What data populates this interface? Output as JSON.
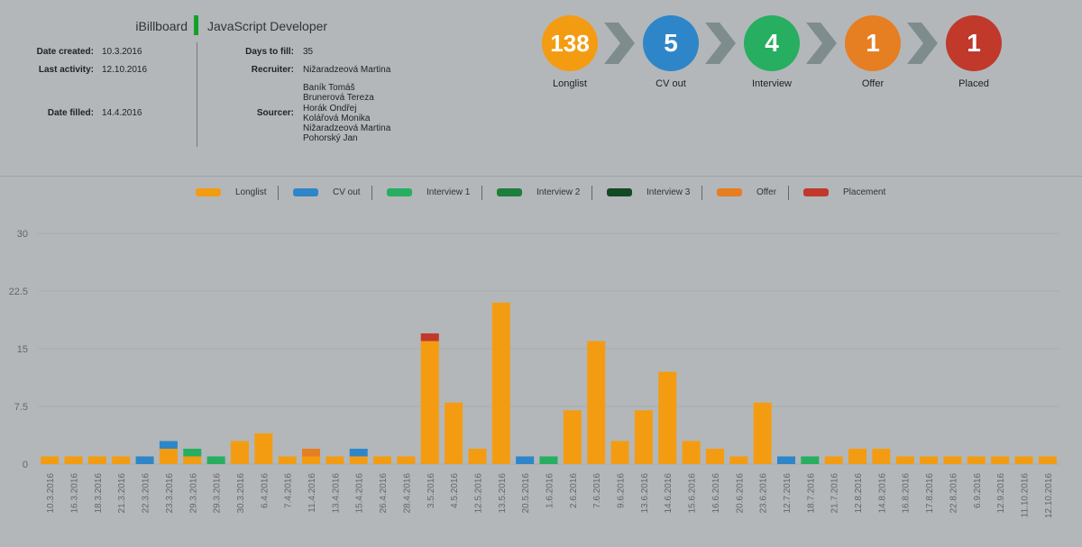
{
  "header": {
    "company": "iBillboard",
    "position": "JavaScript Developer"
  },
  "info": {
    "date_created_label": "Date created:",
    "date_created": "10.3.2016",
    "last_activity_label": "Last activity:",
    "last_activity": "12.10.2016",
    "date_filled_label": "Date filled:",
    "date_filled": "14.4.2016",
    "days_to_fill_label": "Days to fill:",
    "days_to_fill": "35",
    "recruiter_label": "Recruiter:",
    "recruiter": "Nižaradzeová Martina",
    "sourcer_label": "Sourcer:",
    "sourcers": [
      "Baník Tomáš",
      "Brunerová Tereza",
      "Horák Ondřej",
      "Kolářová Monika",
      "Nižaradzeová Martina",
      "Pohorský Jan"
    ]
  },
  "pipeline": [
    {
      "count": "138",
      "label": "Longlist",
      "color": "#f39c12"
    },
    {
      "count": "5",
      "label": "CV out",
      "color": "#2e86c8"
    },
    {
      "count": "4",
      "label": "Interview",
      "color": "#27ae60"
    },
    {
      "count": "1",
      "label": "Offer",
      "color": "#e67e22"
    },
    {
      "count": "1",
      "label": "Placed",
      "color": "#c0392b"
    }
  ],
  "chart_data": {
    "type": "bar",
    "stacked": true,
    "ylim": [
      0,
      30
    ],
    "yticks": [
      "0",
      "7.5",
      "15",
      "22.5",
      "30"
    ],
    "legend_position": "top-center",
    "categories": [
      "10.3.2016",
      "16.3.2016",
      "18.3.2016",
      "21.3.2016",
      "22.3.2016",
      "23.3.2016",
      "29.3.2016",
      "29.3.2016",
      "30.3.2016",
      "6.4.2016",
      "7.4.2016",
      "11.4.2016",
      "13.4.2016",
      "15.4.2016",
      "26.4.2016",
      "28.4.2016",
      "3.5.2016",
      "4.5.2016",
      "12.5.2016",
      "13.5.2016",
      "20.5.2016",
      "1.6.2016",
      "2.6.2016",
      "7.6.2016",
      "9.6.2016",
      "13.6.2016",
      "14.6.2016",
      "15.6.2016",
      "16.6.2016",
      "20.6.2016",
      "23.6.2016",
      "12.7.2016",
      "18.7.2016",
      "21.7.2016",
      "12.8.2016",
      "14.8.2016",
      "16.8.2016",
      "17.8.2016",
      "22.8.2016",
      "6.9.2016",
      "12.9.2016",
      "11.10.2016",
      "12.10.2016"
    ],
    "series": [
      {
        "name": "Longlist",
        "color": "#f39c12",
        "values": [
          1,
          1,
          1,
          1,
          0,
          2,
          1,
          0,
          3,
          4,
          1,
          1,
          1,
          1,
          1,
          1,
          16,
          8,
          2,
          21,
          0,
          0,
          7,
          16,
          3,
          7,
          12,
          3,
          2,
          1,
          8,
          0,
          0,
          1,
          2,
          2,
          1,
          1,
          1,
          1,
          1,
          1,
          1
        ]
      },
      {
        "name": "CV out",
        "color": "#2e86c8",
        "values": [
          0,
          0,
          0,
          0,
          1,
          1,
          0,
          0,
          0,
          0,
          0,
          0,
          0,
          1,
          0,
          0,
          0,
          0,
          0,
          0,
          1,
          0,
          0,
          0,
          0,
          0,
          0,
          0,
          0,
          0,
          0,
          1,
          0,
          0,
          0,
          0,
          0,
          0,
          0,
          0,
          0,
          0,
          0
        ]
      },
      {
        "name": "Interview 1",
        "color": "#27ae60",
        "values": [
          0,
          0,
          0,
          0,
          0,
          0,
          1,
          1,
          0,
          0,
          0,
          0,
          0,
          0,
          0,
          0,
          0,
          0,
          0,
          0,
          0,
          1,
          0,
          0,
          0,
          0,
          0,
          0,
          0,
          0,
          0,
          0,
          1,
          0,
          0,
          0,
          0,
          0,
          0,
          0,
          0,
          0,
          0
        ]
      },
      {
        "name": "Interview 2",
        "color": "#1e7e3e",
        "values": [
          0,
          0,
          0,
          0,
          0,
          0,
          0,
          0,
          0,
          0,
          0,
          0,
          0,
          0,
          0,
          0,
          0,
          0,
          0,
          0,
          0,
          0,
          0,
          0,
          0,
          0,
          0,
          0,
          0,
          0,
          0,
          0,
          0,
          0,
          0,
          0,
          0,
          0,
          0,
          0,
          0,
          0,
          0
        ]
      },
      {
        "name": "Interview 3",
        "color": "#134a24",
        "values": [
          0,
          0,
          0,
          0,
          0,
          0,
          0,
          0,
          0,
          0,
          0,
          0,
          0,
          0,
          0,
          0,
          0,
          0,
          0,
          0,
          0,
          0,
          0,
          0,
          0,
          0,
          0,
          0,
          0,
          0,
          0,
          0,
          0,
          0,
          0,
          0,
          0,
          0,
          0,
          0,
          0,
          0,
          0
        ]
      },
      {
        "name": "Offer",
        "color": "#e67e22",
        "values": [
          0,
          0,
          0,
          0,
          0,
          0,
          0,
          0,
          0,
          0,
          0,
          1,
          0,
          0,
          0,
          0,
          0,
          0,
          0,
          0,
          0,
          0,
          0,
          0,
          0,
          0,
          0,
          0,
          0,
          0,
          0,
          0,
          0,
          0,
          0,
          0,
          0,
          0,
          0,
          0,
          0,
          0,
          0
        ]
      },
      {
        "name": "Placement",
        "color": "#c0392b",
        "values": [
          0,
          0,
          0,
          0,
          0,
          0,
          0,
          0,
          0,
          0,
          0,
          0,
          0,
          0,
          0,
          0,
          1,
          0,
          0,
          0,
          0,
          0,
          0,
          0,
          0,
          0,
          0,
          0,
          0,
          0,
          0,
          0,
          0,
          0,
          0,
          0,
          0,
          0,
          0,
          0,
          0,
          0,
          0
        ]
      }
    ]
  }
}
